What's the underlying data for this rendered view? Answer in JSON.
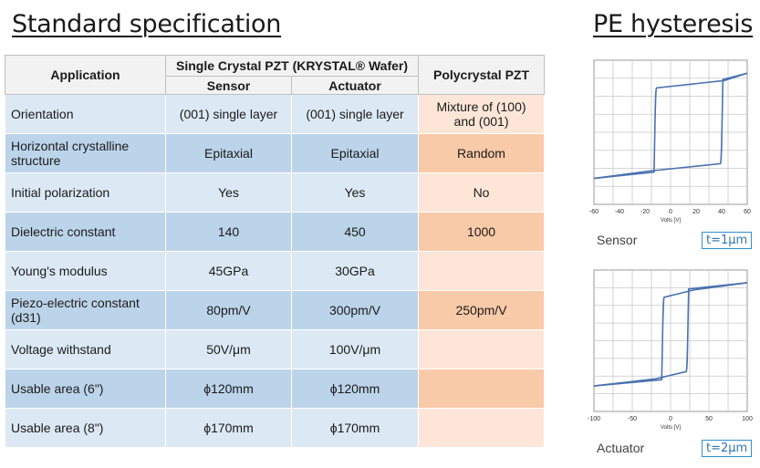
{
  "titles": {
    "left": "Standard specification",
    "right": "PE hysteresis"
  },
  "table": {
    "header": {
      "application": "Application",
      "single_crystal": "Single Crystal PZT (KRYSTAL® Wafer)",
      "sensor": "Sensor",
      "actuator": "Actuator",
      "polycrystal": "Polycrystal PZT"
    },
    "rows": [
      {
        "label": "Orientation",
        "sensor": "(001) single layer",
        "actuator": "(001) single layer",
        "poly": "Mixture of (100) and (001)"
      },
      {
        "label": "Horizontal crystalline structure",
        "sensor": "Epitaxial",
        "actuator": "Epitaxial",
        "poly": "Random"
      },
      {
        "label": "Initial polarization",
        "sensor": "Yes",
        "actuator": "Yes",
        "poly": "No"
      },
      {
        "label": "Dielectric constant",
        "sensor": "140",
        "actuator": "450",
        "poly": "1000"
      },
      {
        "label": "Young's modulus",
        "sensor": "45GPa",
        "actuator": "30GPa",
        "poly": ""
      },
      {
        "label": "Piezo-electric constant (d31)",
        "sensor": "80pm/V",
        "actuator": "300pm/V",
        "poly": "250pm/V"
      },
      {
        "label": "Voltage withstand",
        "sensor": "50V/μm",
        "actuator": "100V/μm",
        "poly": ""
      },
      {
        "label": "Usable area (6\")",
        "sensor": "ϕ120mm",
        "actuator": "ϕ120mm",
        "poly": ""
      },
      {
        "label": "Usable area (8\")",
        "sensor": "ϕ170mm",
        "actuator": "ϕ170mm",
        "poly": ""
      }
    ]
  },
  "plots": {
    "sensor": {
      "label": "Sensor",
      "thickness": "t=1μm",
      "xlabel": "Volts [V]",
      "ticks": [
        "-60",
        "-40",
        "-20",
        "0",
        "20",
        "40",
        "60"
      ],
      "coercive": [
        -12,
        40
      ],
      "xlim": [
        -60,
        60
      ]
    },
    "actuator": {
      "label": "Actuator",
      "thickness": "t=2μm",
      "xlabel": "Volts [V]",
      "ticks": [
        "-100",
        "-50",
        "0",
        "50",
        "100"
      ],
      "coercive": [
        -10,
        22
      ],
      "xlim": [
        -100,
        100
      ]
    }
  },
  "colors": {
    "light_blue": "#dce9f5",
    "dark_blue": "#bcd4ea",
    "light_orange": "#fde6d8",
    "dark_orange": "#f8caa8",
    "curve": "#4a72b0"
  }
}
